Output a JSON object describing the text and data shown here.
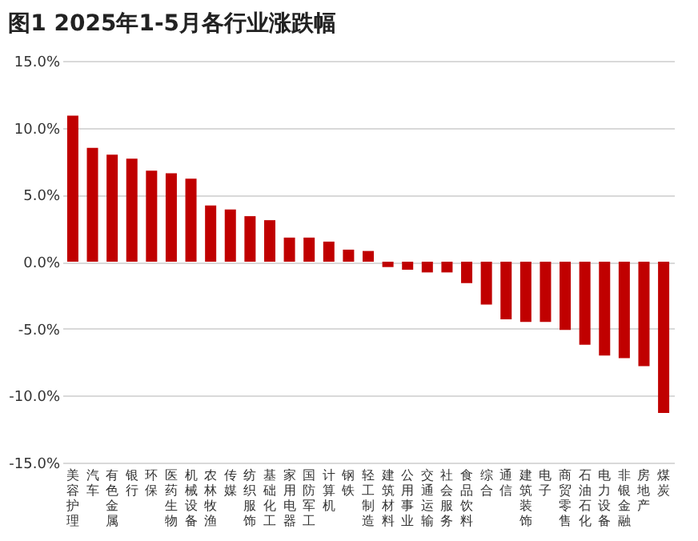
{
  "chart_data": {
    "type": "bar",
    "title": "图1   2025年1-5月各行业涨跌幅",
    "categories": [
      "美容护理",
      "汽车",
      "有色金属",
      "银行",
      "环保",
      "医药生物",
      "机械设备",
      "农林牧渔",
      "传媒",
      "纺织服饰",
      "基础化工",
      "家用电器",
      "国防军工",
      "计算机",
      "钢铁",
      "轻工制造",
      "建筑材料",
      "公用事业",
      "交通运输",
      "社会服务",
      "食品饮料",
      "综合",
      "通信",
      "建筑装饰",
      "电子",
      "商贸零售",
      "石油石化",
      "电力设备",
      "非银金融",
      "房地产",
      "煤炭"
    ],
    "values": [
      10.9,
      8.5,
      8.0,
      7.7,
      6.8,
      6.6,
      6.2,
      4.2,
      3.9,
      3.4,
      3.1,
      1.8,
      1.8,
      1.5,
      0.9,
      0.8,
      -0.4,
      -0.6,
      -0.8,
      -0.8,
      -1.6,
      -3.2,
      -4.3,
      -4.5,
      -4.5,
      -5.1,
      -6.2,
      -7.0,
      -7.2,
      -7.8,
      -11.3
    ],
    "color": "#c00000",
    "ylim": [
      -15,
      15
    ],
    "yticks": [
      {
        "value": -15,
        "label": "-15.0%"
      },
      {
        "value": -10,
        "label": "-10.0%"
      },
      {
        "value": -5,
        "label": "-5.0%"
      },
      {
        "value": 0,
        "label": "0.0%"
      },
      {
        "value": 5,
        "label": "5.0%"
      },
      {
        "value": 10,
        "label": "10.0%"
      },
      {
        "value": 15,
        "label": "15.0%"
      }
    ],
    "grid": "y"
  }
}
